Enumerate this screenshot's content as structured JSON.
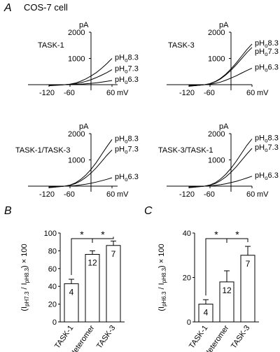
{
  "figure": {
    "panel_a_letter": "A",
    "panel_a_title": "COS-7 cell",
    "panel_b_letter": "B",
    "panel_c_letter": "C"
  },
  "iv": {
    "y_unit": "pA",
    "x_unit": "mV",
    "x_ticks": [
      "-120",
      "-60",
      "60"
    ],
    "y_ticks": [
      "1000",
      "2000"
    ],
    "ph_prefix": "pH",
    "ph_sub": "o",
    "ph_levels": [
      "8.3",
      "7.3",
      "6.3"
    ]
  },
  "chart_data": [
    {
      "type": "line",
      "title": "TASK-1",
      "xlabel": "mV",
      "ylabel": "pA",
      "xlim": [
        -120,
        60
      ],
      "ylim": [
        0,
        2000
      ],
      "x": [
        -120,
        -90,
        -75,
        -60,
        -45,
        -30,
        -15,
        0,
        15,
        30,
        45,
        60
      ],
      "series": [
        {
          "name": "pHo8.3",
          "values": [
            -40,
            -15,
            0,
            20,
            60,
            130,
            220,
            330,
            460,
            620,
            800,
            1000
          ]
        },
        {
          "name": "pHo7.3",
          "values": [
            -30,
            -10,
            0,
            12,
            35,
            75,
            125,
            190,
            270,
            360,
            460,
            570
          ]
        },
        {
          "name": "pHo6.3",
          "values": [
            -20,
            -7,
            0,
            5,
            12,
            22,
            35,
            50,
            70,
            95,
            125,
            160
          ]
        }
      ]
    },
    {
      "type": "line",
      "title": "TASK-3",
      "xlabel": "mV",
      "ylabel": "pA",
      "xlim": [
        -120,
        60
      ],
      "ylim": [
        0,
        2000
      ],
      "x": [
        -120,
        -90,
        -75,
        -60,
        -45,
        -30,
        -15,
        0,
        15,
        30,
        45,
        60
      ],
      "series": [
        {
          "name": "pHo8.3",
          "values": [
            -60,
            -20,
            0,
            40,
            120,
            240,
            400,
            600,
            830,
            1080,
            1330,
            1550
          ]
        },
        {
          "name": "pHo7.3",
          "values": [
            -55,
            -18,
            0,
            35,
            110,
            220,
            370,
            550,
            760,
            990,
            1220,
            1420
          ]
        },
        {
          "name": "pHo6.3",
          "values": [
            -30,
            -10,
            0,
            15,
            50,
            100,
            170,
            250,
            340,
            440,
            540,
            630
          ]
        }
      ]
    },
    {
      "type": "line",
      "title": "TASK-1/TASK-3",
      "xlabel": "mV",
      "ylabel": "pA",
      "xlim": [
        -120,
        60
      ],
      "ylim": [
        0,
        2000
      ],
      "x": [
        -120,
        -90,
        -75,
        -60,
        -45,
        -30,
        -15,
        0,
        15,
        30,
        45,
        60
      ],
      "series": [
        {
          "name": "pHo8.3",
          "values": [
            -60,
            -20,
            0,
            40,
            120,
            250,
            420,
            640,
            900,
            1200,
            1500,
            1780
          ]
        },
        {
          "name": "pHo7.3",
          "values": [
            -50,
            -17,
            0,
            32,
            95,
            195,
            330,
            500,
            700,
            930,
            1170,
            1380
          ]
        },
        {
          "name": "pHo6.3",
          "values": [
            -20,
            -7,
            0,
            8,
            22,
            45,
            75,
            110,
            155,
            205,
            260,
            320
          ]
        }
      ]
    },
    {
      "type": "line",
      "title": "TASK-3/TASK-1",
      "xlabel": "mV",
      "ylabel": "pA",
      "xlim": [
        -120,
        60
      ],
      "ylim": [
        0,
        2000
      ],
      "x": [
        -120,
        -90,
        -75,
        -60,
        -45,
        -30,
        -15,
        0,
        15,
        30,
        45,
        60
      ],
      "series": [
        {
          "name": "pHo8.3",
          "values": [
            -60,
            -20,
            0,
            45,
            130,
            270,
            450,
            680,
            950,
            1250,
            1550,
            1800
          ]
        },
        {
          "name": "pHo7.3",
          "values": [
            -50,
            -17,
            0,
            35,
            100,
            210,
            350,
            530,
            740,
            980,
            1220,
            1440
          ]
        },
        {
          "name": "pHo6.3",
          "values": [
            -20,
            -7,
            0,
            10,
            28,
            55,
            90,
            135,
            185,
            245,
            310,
            380
          ]
        }
      ]
    },
    {
      "type": "bar",
      "panel": "B",
      "ylabel_main": "(I",
      "ylabel_sub1": "pH7.3",
      "ylabel_mid": " / I",
      "ylabel_sub2": "pH8.3",
      "ylabel_end": ") × 100",
      "ylim": [
        0,
        100
      ],
      "y_ticks": [
        "0",
        "20",
        "40",
        "60",
        "80",
        "100"
      ],
      "categories": [
        "TASK-1",
        "Heteromer",
        "TASK-3"
      ],
      "values": [
        43,
        76,
        86
      ],
      "errors": [
        5,
        4,
        5
      ],
      "n": [
        "4",
        "12",
        "7"
      ],
      "significance": [
        "*",
        "*"
      ]
    },
    {
      "type": "bar",
      "panel": "C",
      "ylabel_main": "(I",
      "ylabel_sub1": "pH6.3",
      "ylabel_mid": " / I",
      "ylabel_sub2": "pH8.3",
      "ylabel_end": ") × 100",
      "ylim": [
        0,
        40
      ],
      "y_ticks": [
        "0",
        "20",
        "40"
      ],
      "categories": [
        "TASK-1",
        "Heteromer",
        "TASK-3"
      ],
      "values": [
        8,
        18,
        30
      ],
      "errors": [
        2,
        5,
        4
      ],
      "n": [
        "4",
        "12",
        "7"
      ],
      "significance": [
        "*",
        "*"
      ]
    }
  ]
}
